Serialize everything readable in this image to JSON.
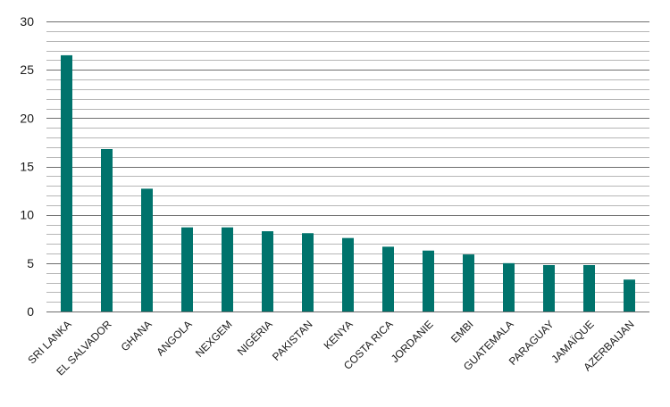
{
  "chart_data": {
    "type": "bar",
    "title": "",
    "xlabel": "",
    "ylabel": "",
    "categories": [
      "SRI LANKA",
      "EL SALVADOR",
      "GHANA",
      "ANGOLA",
      "NEXGEM",
      "NIGÉRIA",
      "PAKISTAN",
      "KENYA",
      "COSTA RICA",
      "JORDANIE",
      "EMBI",
      "GUATEMALA",
      "PARAGUAY",
      "JAMAÏQUE",
      "AZERBAIJAN"
    ],
    "values": [
      26.5,
      16.8,
      12.7,
      8.7,
      8.7,
      8.3,
      8.1,
      7.6,
      6.7,
      6.3,
      5.9,
      5.0,
      4.8,
      4.8,
      3.3
    ],
    "ylim": [
      0,
      30
    ],
    "yticks": [
      0,
      5,
      10,
      15,
      20,
      25,
      30
    ],
    "grid": true,
    "bar_color": "#00736C",
    "grid_color": "#9e9e9e"
  }
}
